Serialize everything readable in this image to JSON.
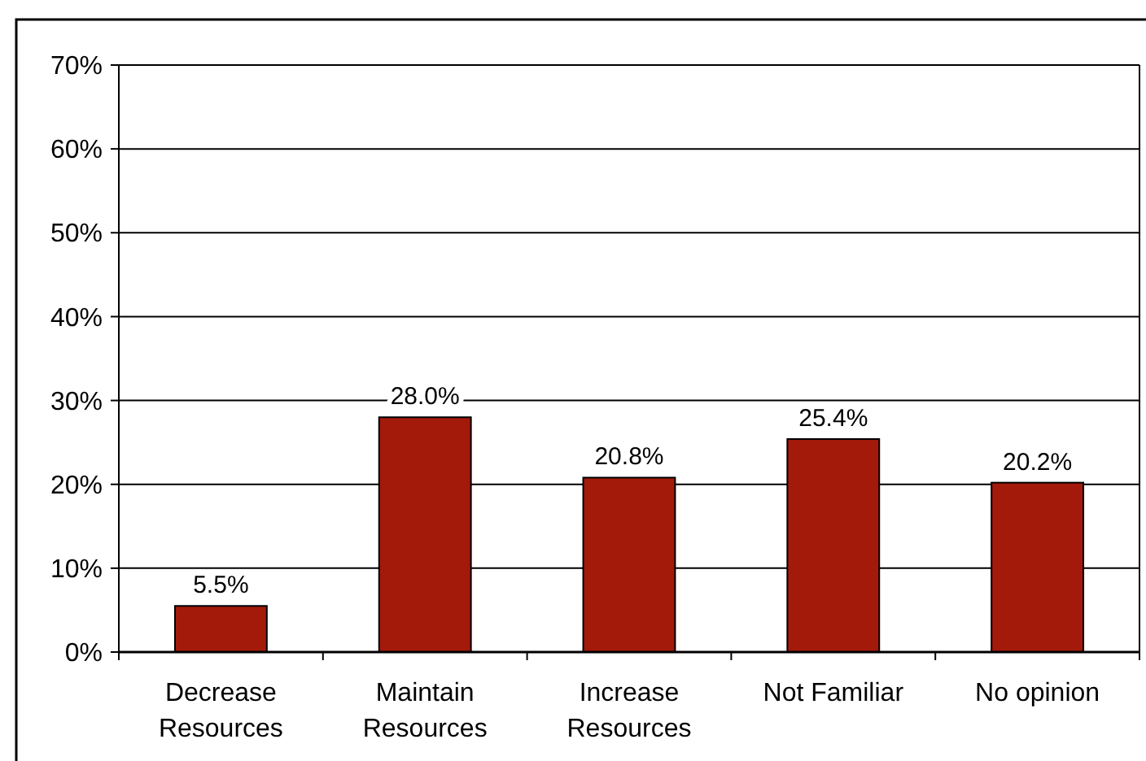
{
  "chart_data": {
    "type": "bar",
    "categories": [
      "Decrease Resources",
      "Maintain Resources",
      "Increase Resources",
      "Not Familiar",
      "No opinion"
    ],
    "values": [
      5.5,
      28.0,
      20.8,
      25.4,
      20.2
    ],
    "value_labels": [
      "5.5%",
      "28.0%",
      "20.8%",
      "25.4%",
      "20.2%"
    ],
    "color": "#a31a0a",
    "ylim": [
      0,
      70
    ],
    "yticks": [
      {
        "value": 0,
        "label": "0%"
      },
      {
        "value": 10,
        "label": "10%"
      },
      {
        "value": 20,
        "label": "20%"
      },
      {
        "value": 30,
        "label": "30%"
      },
      {
        "value": 40,
        "label": "40%"
      },
      {
        "value": 50,
        "label": "50%"
      },
      {
        "value": 60,
        "label": "60%"
      },
      {
        "value": 70,
        "label": "70%"
      }
    ],
    "grid": "y"
  }
}
